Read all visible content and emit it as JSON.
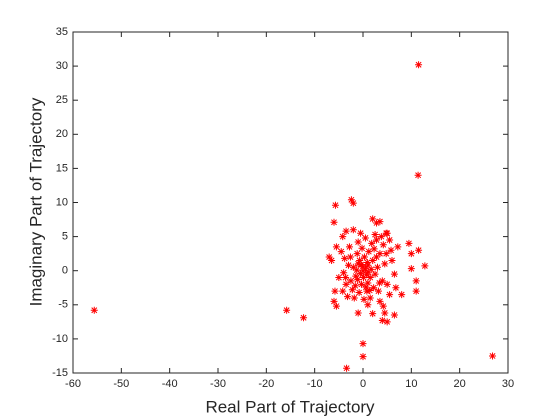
{
  "chart_data": {
    "type": "scatter",
    "x_label": "Real Part of Trajectory",
    "y_label": "Imaginary Part of Trajectory",
    "xlim": [
      -60,
      30
    ],
    "xticks": [
      -60,
      -50,
      -40,
      -30,
      -20,
      -10,
      0,
      10,
      20,
      30
    ],
    "ylim": [
      -15,
      35
    ],
    "yticks": [
      -15,
      -10,
      -5,
      0,
      5,
      10,
      15,
      20,
      25,
      30,
      35
    ],
    "marker": "asterisk",
    "series": [
      {
        "color": "#ff0000",
        "x": [
          -55.6,
          11.5,
          11.4,
          26.8,
          -15.8,
          -12.3,
          -3.4,
          0,
          0,
          -2.4,
          -2,
          -5.7,
          -6,
          2,
          3.5,
          5,
          9.5,
          10,
          11.5,
          12.8,
          10,
          11,
          11,
          8,
          6.5,
          4.5,
          4,
          5,
          1,
          -1,
          -5.5,
          0,
          0.5,
          -0.5,
          1,
          -1,
          1.5,
          -1.5,
          2,
          -2,
          0.3,
          -0.3,
          2.5,
          -2.5,
          1.2,
          -1.2,
          3,
          -3,
          0.8,
          -0.8,
          2.2,
          -2.2,
          3.5,
          -3.5,
          1.8,
          -1,
          4,
          -3.8,
          0.5,
          2.8,
          3.2,
          -2.8,
          4.5,
          -4,
          0.2,
          1.5,
          -1.8,
          4.2,
          -3.2,
          3.8,
          2.5,
          -0.5,
          5,
          4.8,
          -4.5,
          -4.2,
          1,
          -0.7,
          0.9,
          1.7,
          -1.3,
          0.1,
          2.8,
          -2.6,
          2.3,
          -0.2,
          3.4,
          -3.6,
          0.6,
          -1.6,
          1.4,
          5.5,
          4.8,
          5.8,
          6,
          6.5,
          7.2,
          5.5,
          6.8,
          -5,
          -5.8,
          -6.5,
          -5.5,
          -4.2,
          -6,
          -7,
          3.5,
          4.2,
          2,
          -3.5,
          -2,
          2.8,
          0,
          0.7,
          -0.4,
          1.1,
          -1.1
        ],
        "y": [
          -5.8,
          30.2,
          14,
          -12.5,
          -5.8,
          -6.9,
          -14.3,
          -10.7,
          -12.6,
          10.4,
          9.9,
          9.6,
          7.1,
          7.6,
          7.2,
          5.5,
          4,
          2.5,
          3,
          0.7,
          0.3,
          -1.5,
          -3,
          -3.5,
          -6.5,
          -6.2,
          -7.3,
          -7.5,
          -5,
          -6.2,
          -5.2,
          0,
          0.3,
          -0.4,
          0.8,
          1,
          -1,
          -0.8,
          1.5,
          0.5,
          2,
          -2,
          -0.5,
          -1.5,
          2.8,
          2.5,
          0.5,
          0.8,
          -3,
          -3.2,
          -2.5,
          -2.8,
          2.5,
          -2,
          4,
          4.2,
          -1.5,
          1.8,
          4.8,
          4.5,
          -3,
          3.5,
          1,
          -0.3,
          -4.2,
          -4,
          -4,
          3.8,
          -3.8,
          5,
          5.3,
          5.5,
          -2,
          2.5,
          2.8,
          -3,
          -1.8,
          1.5,
          1.2,
          0.2,
          0.1,
          -1,
          2,
          2,
          3.2,
          3.3,
          -1.8,
          -1,
          -2.4,
          -2.2,
          -2.9,
          4.5,
          5.5,
          3,
          1.5,
          -0.5,
          3.5,
          -3.5,
          -2.5,
          -1,
          -3,
          1.5,
          3.5,
          5,
          -4.5,
          2,
          -4.5,
          -5.2,
          -6.3,
          5.8,
          6,
          7,
          0.6,
          -0.6,
          0.9,
          -0.2,
          -1.3
        ]
      }
    ]
  }
}
